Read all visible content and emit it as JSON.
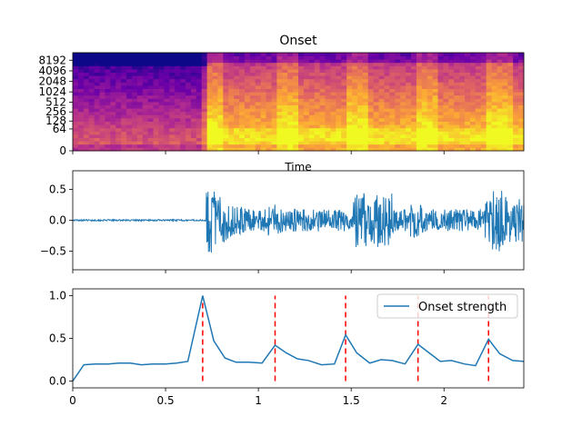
{
  "chart_data": [
    {
      "type": "heatmap",
      "title": "Onset",
      "xlabel": "Time",
      "ylabel": "",
      "y_scale": "log2",
      "yticks": [
        "0",
        "64",
        "128",
        "256",
        "512",
        "1024",
        "2048",
        "4096",
        "8192"
      ],
      "colormap": [
        "#0d0887",
        "#6a00a8",
        "#b12a90",
        "#e16462",
        "#fca636",
        "#f0f921"
      ],
      "description_values": [
        0.1,
        0.35,
        0.6,
        0.85
      ]
    },
    {
      "type": "line",
      "title": "",
      "xlim": [
        0,
        2.43
      ],
      "ylim": [
        -0.8,
        0.8
      ],
      "yticks": [
        "0.5",
        "0.0",
        "−0.5"
      ],
      "ytick_values": [
        0.5,
        0.0,
        -0.5
      ],
      "series": [
        {
          "name": "waveform",
          "color": "#1f77b4"
        }
      ]
    },
    {
      "type": "line",
      "xlim": [
        0,
        2.43
      ],
      "ylim": [
        -0.08,
        1.08
      ],
      "xticks": [
        "0",
        "0.5",
        "1",
        "1.5",
        "2"
      ],
      "xtick_values": [
        0,
        0.5,
        1.0,
        1.5,
        2.0
      ],
      "yticks": [
        "1.0",
        "0.5",
        "0.0"
      ],
      "ytick_values": [
        1.0,
        0.5,
        0.0
      ],
      "legend": "top-right",
      "series": [
        {
          "name": "Onset strength",
          "color": "#1f77b4",
          "x": [
            0.0,
            0.06,
            0.12,
            0.19,
            0.25,
            0.31,
            0.37,
            0.43,
            0.5,
            0.56,
            0.62,
            0.7,
            0.76,
            0.82,
            0.88,
            0.95,
            1.02,
            1.09,
            1.15,
            1.21,
            1.27,
            1.34,
            1.41,
            1.47,
            1.53,
            1.6,
            1.66,
            1.72,
            1.79,
            1.86,
            1.92,
            1.98,
            2.04,
            2.11,
            2.17,
            2.24,
            2.3,
            2.37,
            2.43
          ],
          "y": [
            0.0,
            0.19,
            0.2,
            0.2,
            0.21,
            0.21,
            0.19,
            0.2,
            0.2,
            0.21,
            0.23,
            1.0,
            0.47,
            0.27,
            0.22,
            0.22,
            0.21,
            0.42,
            0.33,
            0.26,
            0.24,
            0.19,
            0.2,
            0.54,
            0.33,
            0.21,
            0.25,
            0.24,
            0.2,
            0.43,
            0.33,
            0.23,
            0.24,
            0.2,
            0.18,
            0.49,
            0.32,
            0.24,
            0.23
          ]
        }
      ],
      "onsets": [
        0.7,
        1.09,
        1.47,
        1.86,
        2.24
      ]
    }
  ]
}
